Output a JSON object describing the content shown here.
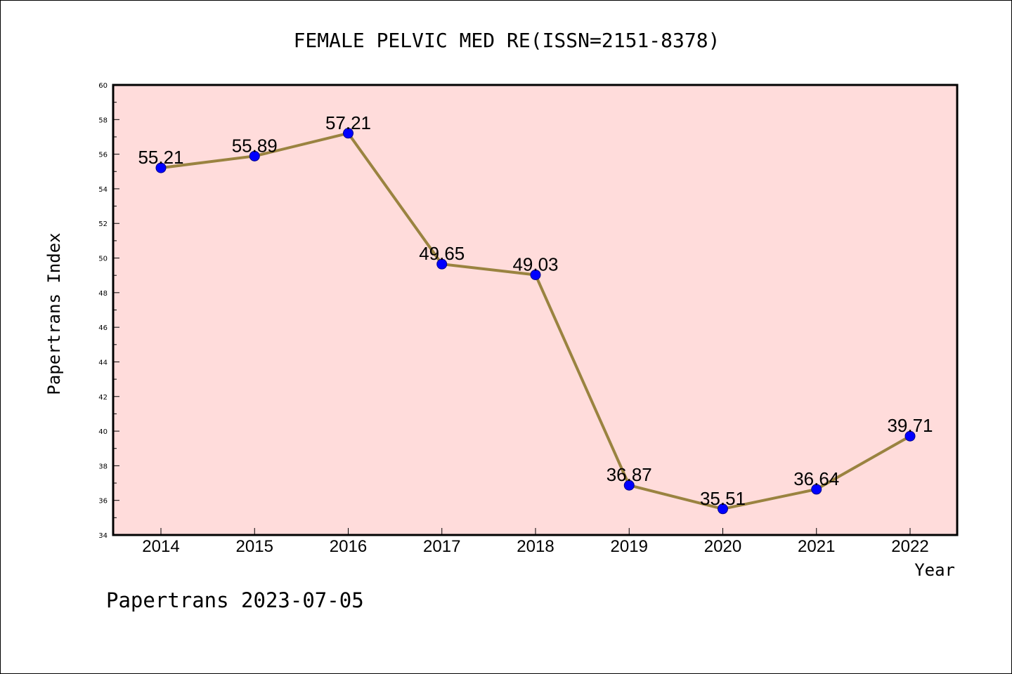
{
  "chart_data": {
    "type": "line",
    "title": "FEMALE PELVIC MED RE(ISSN=2151-8378)",
    "xlabel": "Year",
    "ylabel": "Papertrans Index",
    "categories": [
      "2014",
      "2015",
      "2016",
      "2017",
      "2018",
      "2019",
      "2020",
      "2021",
      "2022"
    ],
    "values": [
      55.21,
      55.89,
      57.21,
      49.65,
      49.03,
      36.87,
      35.51,
      36.64,
      39.71
    ],
    "value_labels": [
      "55.21",
      "55.89",
      "57.21",
      "49.65",
      "49.03",
      "36.87",
      "35.51",
      "36.64",
      "39.71"
    ],
    "ylim": [
      34,
      60
    ],
    "yticks": [
      "34",
      "36",
      "38",
      "40",
      "42",
      "44",
      "46",
      "48",
      "50",
      "52",
      "54",
      "56",
      "58",
      "60"
    ],
    "grid": false,
    "colors": {
      "plot_background": "#ffdcdb",
      "line": "#9a8340",
      "marker": "#0000ff"
    }
  },
  "footer": "Papertrans 2023-07-05"
}
